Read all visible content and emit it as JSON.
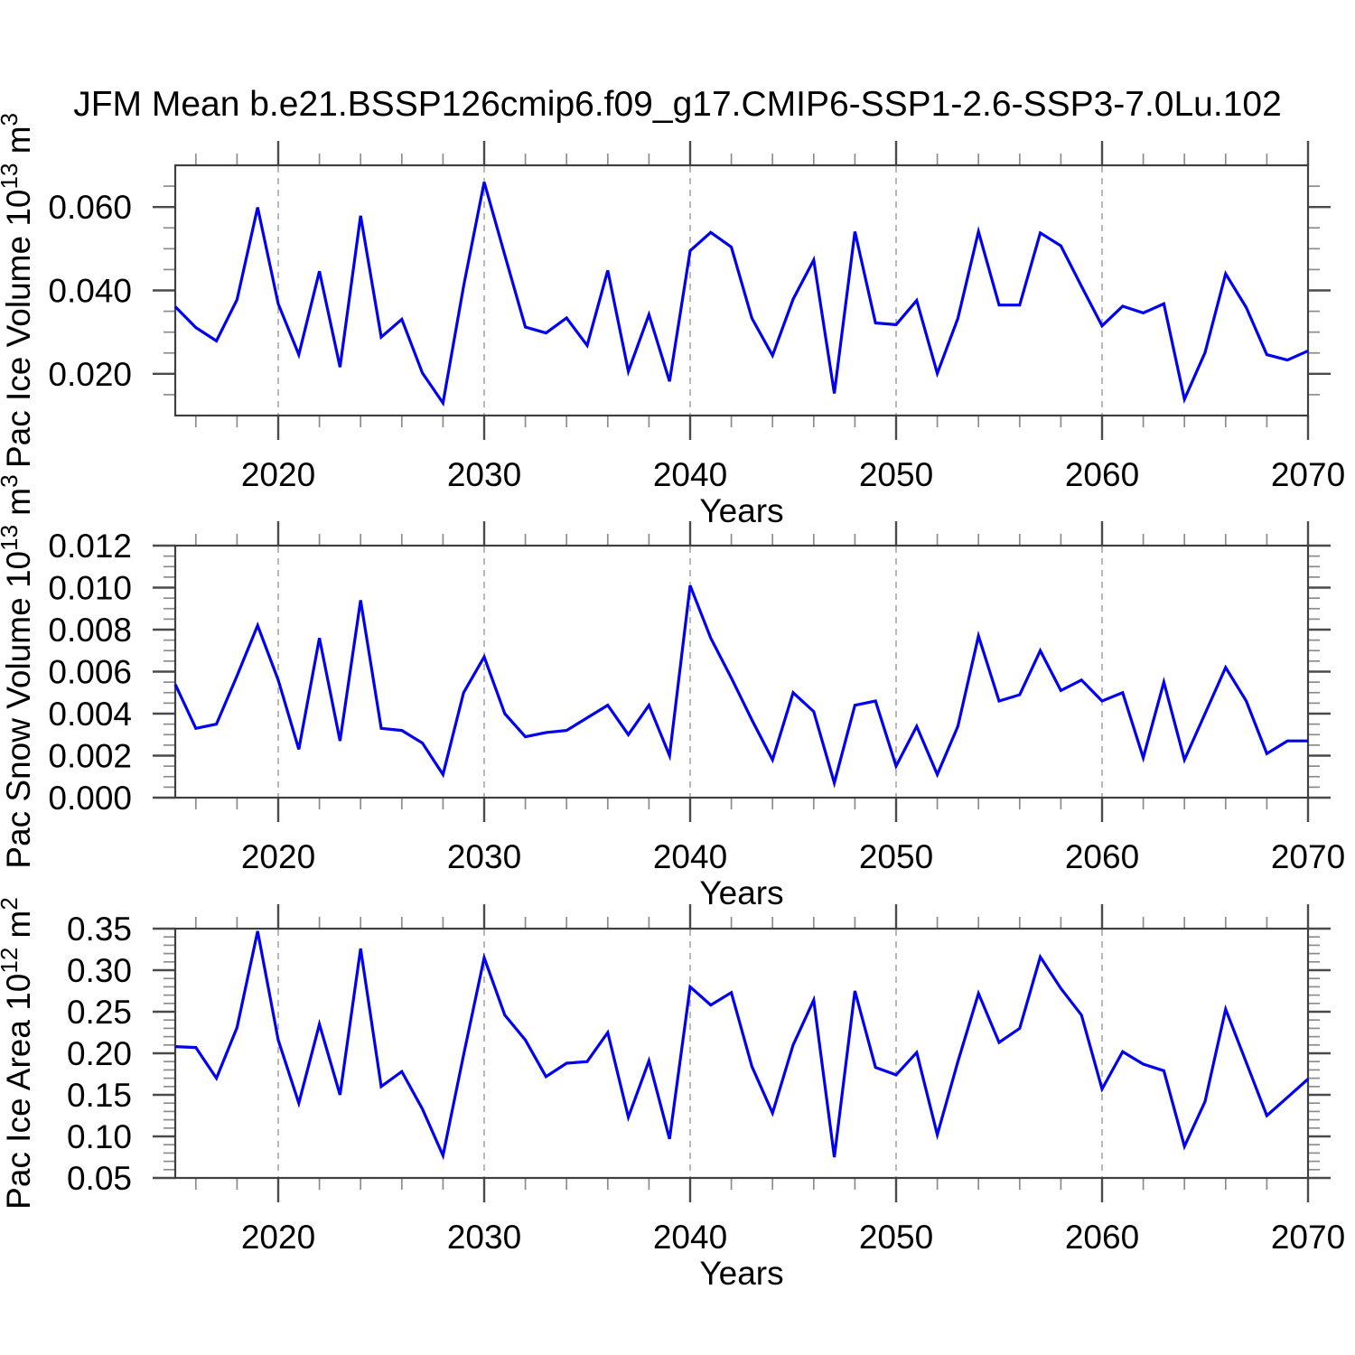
{
  "title": "JFM Mean b.e21.BSSP126cmip6.f09_g17.CMIP6-SSP1-2.6-SSP3-7.0Lu.102",
  "style": {
    "line_color": "#0101f0",
    "frame_color": "#3f3f3f",
    "major_tick_color": "#4a4a4a",
    "minor_tick_color": "#8c8c8c",
    "grid_color": "#9b9b9b",
    "text_color": "#000000",
    "background": "#ffffff"
  },
  "chart_data": [
    {
      "type": "line",
      "name": "pac-ice-volume",
      "xlabel": "Years",
      "ylabel_plain": "Pac Ice Volume 10^13 m^3",
      "ylabel_segments": [
        [
          "Pac Ice Volume 10",
          false
        ],
        [
          "13",
          true
        ],
        [
          " m",
          false
        ],
        [
          "3",
          true
        ]
      ],
      "xlim": [
        2015,
        2070
      ],
      "ylim": [
        0.01,
        0.07
      ],
      "xtick_values": [
        2020,
        2030,
        2040,
        2050,
        2060,
        2070
      ],
      "xtick_labels": [
        "2020",
        "2030",
        "2040",
        "2050",
        "2060",
        "2070"
      ],
      "xminor_step": 2,
      "grid_x": [
        2020,
        2030,
        2040,
        2050,
        2060
      ],
      "ytick_values": [
        0.02,
        0.04,
        0.06
      ],
      "ytick_labels": [
        "0.020",
        "0.040",
        "0.060"
      ],
      "yminor_step": 0.005,
      "x": [
        2015,
        2016,
        2017,
        2018,
        2019,
        2020,
        2021,
        2022,
        2023,
        2024,
        2025,
        2026,
        2027,
        2028,
        2029,
        2030,
        2031,
        2032,
        2033,
        2034,
        2035,
        2036,
        2037,
        2038,
        2039,
        2040,
        2041,
        2042,
        2043,
        2044,
        2045,
        2046,
        2047,
        2048,
        2049,
        2050,
        2051,
        2052,
        2053,
        2054,
        2055,
        2056,
        2057,
        2058,
        2059,
        2060,
        2061,
        2062,
        2063,
        2064,
        2065,
        2066,
        2067,
        2068,
        2069,
        2070
      ],
      "values": [
        0.0361,
        0.0311,
        0.0279,
        0.0378,
        0.0599,
        0.0368,
        0.0246,
        0.0446,
        0.0216,
        0.0579,
        0.0288,
        0.0331,
        0.0202,
        0.013,
        0.041,
        0.066,
        0.0485,
        0.0312,
        0.0298,
        0.0334,
        0.0268,
        0.0448,
        0.0206,
        0.0342,
        0.0182,
        0.0495,
        0.0539,
        0.0504,
        0.0333,
        0.0244,
        0.0379,
        0.0473,
        0.0153,
        0.0541,
        0.0322,
        0.0318,
        0.0376,
        0.0201,
        0.0333,
        0.0541,
        0.0365,
        0.0365,
        0.0538,
        0.0507,
        0.041,
        0.0315,
        0.0362,
        0.0346,
        0.0368,
        0.0139,
        0.0251,
        0.044,
        0.0359,
        0.0246,
        0.0233,
        0.0255
      ]
    },
    {
      "type": "line",
      "name": "pac-snow-volume",
      "xlabel": "Years",
      "ylabel_plain": "Pac Snow Volume 10^13 m^3",
      "ylabel_segments": [
        [
          "Pac Snow Volume 10",
          false
        ],
        [
          "13",
          true
        ],
        [
          " m",
          false
        ],
        [
          "3",
          true
        ]
      ],
      "xlim": [
        2015,
        2070
      ],
      "ylim": [
        0.0,
        0.012
      ],
      "xtick_values": [
        2020,
        2030,
        2040,
        2050,
        2060,
        2070
      ],
      "xtick_labels": [
        "2020",
        "2030",
        "2040",
        "2050",
        "2060",
        "2070"
      ],
      "xminor_step": 2,
      "grid_x": [
        2020,
        2030,
        2040,
        2050,
        2060
      ],
      "ytick_values": [
        0.0,
        0.002,
        0.004,
        0.006,
        0.008,
        0.01,
        0.012
      ],
      "ytick_labels": [
        "0.000",
        "0.002",
        "0.004",
        "0.006",
        "0.008",
        "0.010",
        "0.012"
      ],
      "yminor_step": 0.0005,
      "x": [
        2015,
        2016,
        2017,
        2018,
        2019,
        2020,
        2021,
        2022,
        2023,
        2024,
        2025,
        2026,
        2027,
        2028,
        2029,
        2030,
        2031,
        2032,
        2033,
        2034,
        2035,
        2036,
        2037,
        2038,
        2039,
        2040,
        2041,
        2042,
        2043,
        2044,
        2045,
        2046,
        2047,
        2048,
        2049,
        2050,
        2051,
        2052,
        2053,
        2054,
        2055,
        2056,
        2057,
        2058,
        2059,
        2060,
        2061,
        2062,
        2063,
        2064,
        2065,
        2066,
        2067,
        2068,
        2069,
        2070
      ],
      "values": [
        0.0054,
        0.0033,
        0.0035,
        0.0058,
        0.0082,
        0.0056,
        0.0023,
        0.0076,
        0.0027,
        0.0094,
        0.0033,
        0.0032,
        0.0026,
        0.0011,
        0.005,
        0.0067,
        0.004,
        0.0029,
        0.0031,
        0.0032,
        0.0038,
        0.0044,
        0.003,
        0.0044,
        0.002,
        0.0101,
        0.0076,
        0.0057,
        0.0037,
        0.0018,
        0.005,
        0.0041,
        0.0007,
        0.0044,
        0.0046,
        0.0015,
        0.0034,
        0.0011,
        0.0034,
        0.0077,
        0.0046,
        0.0049,
        0.007,
        0.0051,
        0.0056,
        0.0046,
        0.005,
        0.0019,
        0.0055,
        0.0018,
        0.004,
        0.0062,
        0.0046,
        0.0021,
        0.0027,
        0.0027
      ]
    },
    {
      "type": "line",
      "name": "pac-ice-area",
      "xlabel": "Years",
      "ylabel_plain": "Pac Ice Area 10^12 m^2",
      "ylabel_segments": [
        [
          "Pac Ice Area 10",
          false
        ],
        [
          "12",
          true
        ],
        [
          " m",
          false
        ],
        [
          "2",
          true
        ]
      ],
      "xlim": [
        2015,
        2070
      ],
      "ylim": [
        0.05,
        0.35
      ],
      "xtick_values": [
        2020,
        2030,
        2040,
        2050,
        2060,
        2070
      ],
      "xtick_labels": [
        "2020",
        "2030",
        "2040",
        "2050",
        "2060",
        "2070"
      ],
      "xminor_step": 2,
      "grid_x": [
        2020,
        2030,
        2040,
        2050,
        2060
      ],
      "ytick_values": [
        0.05,
        0.1,
        0.15,
        0.2,
        0.25,
        0.3,
        0.35
      ],
      "ytick_labels": [
        "0.05",
        "0.10",
        "0.15",
        "0.20",
        "0.25",
        "0.30",
        "0.35"
      ],
      "yminor_step": 0.01,
      "x": [
        2015,
        2016,
        2017,
        2018,
        2019,
        2020,
        2021,
        2022,
        2023,
        2024,
        2025,
        2026,
        2027,
        2028,
        2029,
        2030,
        2031,
        2032,
        2033,
        2034,
        2035,
        2036,
        2037,
        2038,
        2039,
        2040,
        2041,
        2042,
        2043,
        2044,
        2045,
        2046,
        2047,
        2048,
        2049,
        2050,
        2051,
        2052,
        2053,
        2054,
        2055,
        2056,
        2057,
        2058,
        2059,
        2060,
        2061,
        2062,
        2063,
        2064,
        2065,
        2066,
        2067,
        2068,
        2069,
        2070
      ],
      "values": [
        0.208,
        0.207,
        0.17,
        0.231,
        0.347,
        0.216,
        0.14,
        0.235,
        0.15,
        0.326,
        0.16,
        0.178,
        0.133,
        0.077,
        0.198,
        0.315,
        0.246,
        0.216,
        0.172,
        0.188,
        0.19,
        0.225,
        0.123,
        0.191,
        0.097,
        0.28,
        0.258,
        0.273,
        0.184,
        0.128,
        0.21,
        0.264,
        0.075,
        0.275,
        0.183,
        0.174,
        0.201,
        0.102,
        0.19,
        0.272,
        0.213,
        0.23,
        0.316,
        0.278,
        0.246,
        0.157,
        0.202,
        0.187,
        0.179,
        0.088,
        0.142,
        0.253,
        0.189,
        0.125,
        0.147,
        0.169
      ]
    }
  ]
}
